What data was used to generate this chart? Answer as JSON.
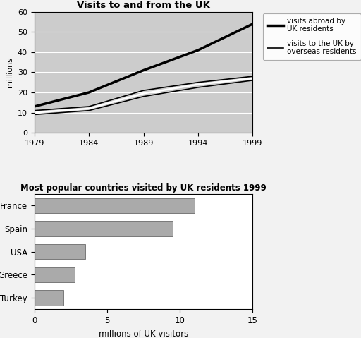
{
  "line_title": "Visits to and from the UK",
  "bar_title": "Most popular countries visited by UK residents 1999",
  "years": [
    1979,
    1984,
    1989,
    1994,
    1999
  ],
  "visits_abroad": [
    13,
    20,
    31,
    41,
    54
  ],
  "visits_to_uk_upper": [
    11,
    13,
    21,
    25,
    28
  ],
  "visits_to_uk_mid": [
    10,
    12,
    19.5,
    24,
    27
  ],
  "visits_to_uk_lower": [
    9,
    11,
    18,
    22.5,
    26
  ],
  "line_ylim": [
    0,
    60
  ],
  "line_ylabel": "millions",
  "line_legend1": "visits abroad by\nUK residents",
  "line_legend2": "visits to the UK by\noverseas residents",
  "bar_countries": [
    "France",
    "Spain",
    "USA",
    "Greece",
    "Turkey"
  ],
  "bar_values": [
    11.0,
    9.5,
    3.5,
    2.8,
    2.0
  ],
  "bar_xlim": [
    0,
    15
  ],
  "bar_xlabel": "millions of UK visitors",
  "bar_color": "#aaaaaa",
  "line_bg_color": "#cccccc",
  "line_color_abroad": "#000000",
  "line_color_overseas": "#333333",
  "fig_bg_color": "#f2f2f2"
}
